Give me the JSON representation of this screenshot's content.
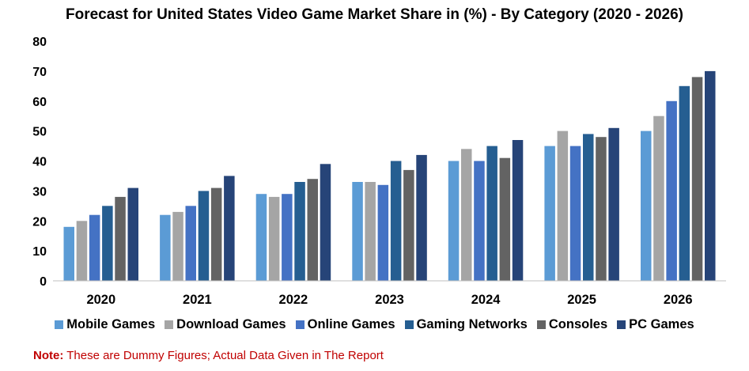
{
  "chart_data": {
    "type": "bar",
    "title": "Forecast for United States Video Game Market Share in (%) - By Category (2020 - 2026)",
    "categories": [
      "2020",
      "2021",
      "2022",
      "2023",
      "2024",
      "2025",
      "2026"
    ],
    "ylim": [
      0,
      80
    ],
    "yticks": [
      "0",
      "10",
      "20",
      "30",
      "40",
      "50",
      "60",
      "70",
      "80"
    ],
    "grid": false,
    "legend_position": "bottom",
    "series": [
      {
        "name": "Mobile Games",
        "color": "#5b9bd5",
        "values": [
          18,
          22,
          29,
          33,
          40,
          45,
          50
        ]
      },
      {
        "name": "Download Games",
        "color": "#a5a5a5",
        "values": [
          20,
          23,
          28,
          33,
          44,
          50,
          55
        ]
      },
      {
        "name": "Online Games",
        "color": "#4472c4",
        "values": [
          22,
          25,
          29,
          32,
          40,
          45,
          60
        ]
      },
      {
        "name": "Gaming Networks",
        "color": "#255e91",
        "values": [
          25,
          30,
          33,
          40,
          45,
          49,
          65
        ]
      },
      {
        "name": "Consoles",
        "color": "#636363",
        "values": [
          28,
          31,
          34,
          37,
          41,
          48,
          68
        ]
      },
      {
        "name": "PC Games",
        "color": "#264478",
        "values": [
          31,
          35,
          39,
          42,
          47,
          51,
          70
        ]
      }
    ]
  },
  "note": {
    "label": "Note:",
    "text": " These are Dummy Figures; Actual Data Given in The Report"
  }
}
